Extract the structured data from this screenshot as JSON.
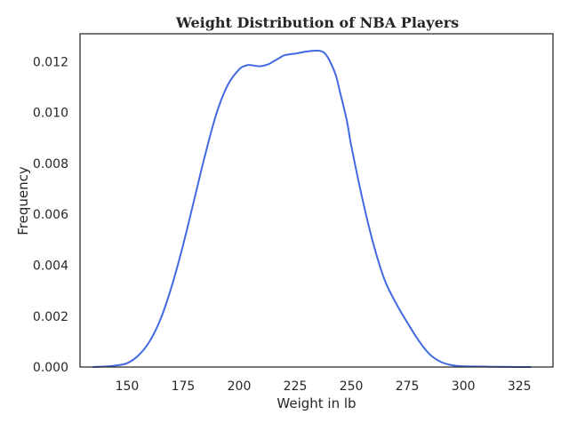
{
  "chart_data": {
    "type": "line",
    "title": "Weight Distribution of NBA Players",
    "xlabel": "Weight in lb",
    "ylabel": "Frequency",
    "xlim": [
      129,
      340
    ],
    "ylim": [
      0,
      0.0131
    ],
    "x_ticks": [
      150,
      175,
      200,
      225,
      250,
      275,
      300,
      325
    ],
    "y_ticks": [
      0.0,
      0.002,
      0.004,
      0.006,
      0.008,
      0.01,
      0.012
    ],
    "x_tick_labels": [
      "150",
      "175",
      "200",
      "225",
      "250",
      "275",
      "300",
      "325"
    ],
    "y_tick_labels": [
      "0.000",
      "0.002",
      "0.004",
      "0.006",
      "0.008",
      "0.010",
      "0.012"
    ],
    "grid": false,
    "series": [
      {
        "color": "#4169e1",
        "x": [
          135,
          140,
          145,
          150,
          155,
          160,
          165,
          170,
          175,
          180,
          185,
          190,
          195,
          200,
          203,
          205,
          208,
          210,
          213,
          215,
          218,
          220,
          223,
          225,
          228,
          230,
          233,
          236,
          238,
          240,
          243,
          245,
          248,
          250,
          255,
          260,
          265,
          270,
          275,
          280,
          285,
          290,
          295,
          300,
          305,
          310,
          315,
          320,
          325,
          330
        ],
        "y": [
          0.0,
          2e-05,
          6e-05,
          0.00015,
          0.00045,
          0.001,
          0.0019,
          0.0032,
          0.0048,
          0.0066,
          0.0084,
          0.01,
          0.0111,
          0.0117,
          0.01185,
          0.01187,
          0.01183,
          0.01183,
          0.0119,
          0.012,
          0.01215,
          0.01225,
          0.0123,
          0.01232,
          0.01237,
          0.0124,
          0.01243,
          0.01243,
          0.01235,
          0.0121,
          0.0115,
          0.0108,
          0.0097,
          0.0087,
          0.0066,
          0.0048,
          0.0034,
          0.0025,
          0.00175,
          0.00105,
          0.0005,
          0.0002,
          7e-05,
          3e-05,
          2e-05,
          1.5e-05,
          8e-06,
          3e-06,
          1e-06,
          0.0
        ]
      }
    ]
  }
}
